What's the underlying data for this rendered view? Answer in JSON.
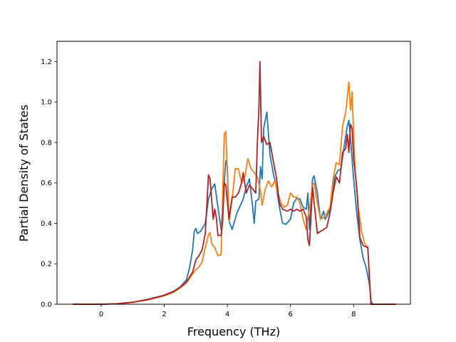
{
  "chart_data": {
    "type": "line",
    "title": "",
    "xlabel": "Frequency (THz)",
    "ylabel": "Partial Density of States",
    "xlim": [
      -1.4,
      9.8
    ],
    "ylim": [
      0.0,
      1.3
    ],
    "xticks": [
      0,
      2,
      4,
      6,
      8
    ],
    "yticks": [
      0.0,
      0.2,
      0.4,
      0.6,
      0.8,
      1.0,
      1.2
    ],
    "xtick_labels": [
      "0",
      "2",
      "4",
      "6",
      "8"
    ],
    "ytick_labels": [
      "0.0",
      "0.2",
      "0.4",
      "0.6",
      "0.8",
      "1.0",
      "1.2"
    ],
    "grid": false,
    "legend": "none",
    "series": [
      {
        "color": "#1f77b4",
        "points": [
          [
            -0.9,
            0.0
          ],
          [
            0.0,
            0.0
          ],
          [
            0.5,
            0.002
          ],
          [
            1.0,
            0.01
          ],
          [
            1.5,
            0.025
          ],
          [
            2.0,
            0.045
          ],
          [
            2.3,
            0.065
          ],
          [
            2.5,
            0.085
          ],
          [
            2.7,
            0.12
          ],
          [
            2.8,
            0.18
          ],
          [
            2.9,
            0.27
          ],
          [
            2.95,
            0.36
          ],
          [
            3.0,
            0.375
          ],
          [
            3.05,
            0.35
          ],
          [
            3.15,
            0.36
          ],
          [
            3.3,
            0.4
          ],
          [
            3.4,
            0.52
          ],
          [
            3.5,
            0.57
          ],
          [
            3.6,
            0.595
          ],
          [
            3.7,
            0.48
          ],
          [
            3.8,
            0.37
          ],
          [
            3.9,
            0.6
          ],
          [
            3.95,
            0.71
          ],
          [
            4.0,
            0.68
          ],
          [
            4.05,
            0.41
          ],
          [
            4.15,
            0.37
          ],
          [
            4.3,
            0.45
          ],
          [
            4.5,
            0.52
          ],
          [
            4.6,
            0.58
          ],
          [
            4.7,
            0.62
          ],
          [
            4.8,
            0.48
          ],
          [
            4.85,
            0.4
          ],
          [
            4.9,
            0.51
          ],
          [
            5.0,
            0.52
          ],
          [
            5.05,
            0.68
          ],
          [
            5.1,
            0.62
          ],
          [
            5.15,
            0.87
          ],
          [
            5.25,
            0.95
          ],
          [
            5.35,
            0.74
          ],
          [
            5.45,
            0.65
          ],
          [
            5.55,
            0.58
          ],
          [
            5.65,
            0.48
          ],
          [
            5.75,
            0.4
          ],
          [
            5.85,
            0.395
          ],
          [
            6.0,
            0.42
          ],
          [
            6.1,
            0.5
          ],
          [
            6.2,
            0.525
          ],
          [
            6.3,
            0.52
          ],
          [
            6.4,
            0.48
          ],
          [
            6.5,
            0.47
          ],
          [
            6.55,
            0.55
          ],
          [
            6.6,
            0.37
          ],
          [
            6.7,
            0.62
          ],
          [
            6.75,
            0.635
          ],
          [
            6.85,
            0.55
          ],
          [
            6.95,
            0.42
          ],
          [
            7.05,
            0.46
          ],
          [
            7.1,
            0.42
          ],
          [
            7.2,
            0.45
          ],
          [
            7.3,
            0.5
          ],
          [
            7.4,
            0.63
          ],
          [
            7.5,
            0.66
          ],
          [
            7.6,
            0.67
          ],
          [
            7.7,
            0.78
          ],
          [
            7.8,
            0.88
          ],
          [
            7.85,
            0.91
          ],
          [
            7.9,
            0.82
          ],
          [
            8.0,
            0.62
          ],
          [
            8.1,
            0.45
          ],
          [
            8.2,
            0.32
          ],
          [
            8.3,
            0.23
          ],
          [
            8.4,
            0.18
          ],
          [
            8.5,
            0.1
          ],
          [
            8.55,
            0.02
          ],
          [
            8.6,
            0.0
          ],
          [
            9.35,
            0.0
          ]
        ]
      },
      {
        "color": "#ff7f0e",
        "points": [
          [
            -0.9,
            0.0
          ],
          [
            0.0,
            0.0
          ],
          [
            0.5,
            0.002
          ],
          [
            1.0,
            0.009
          ],
          [
            1.5,
            0.022
          ],
          [
            2.0,
            0.042
          ],
          [
            2.3,
            0.06
          ],
          [
            2.5,
            0.08
          ],
          [
            2.7,
            0.105
          ],
          [
            2.9,
            0.15
          ],
          [
            3.0,
            0.17
          ],
          [
            3.1,
            0.185
          ],
          [
            3.2,
            0.21
          ],
          [
            3.3,
            0.28
          ],
          [
            3.4,
            0.345
          ],
          [
            3.45,
            0.355
          ],
          [
            3.5,
            0.3
          ],
          [
            3.6,
            0.28
          ],
          [
            3.7,
            0.24
          ],
          [
            3.8,
            0.245
          ],
          [
            3.85,
            0.55
          ],
          [
            3.9,
            0.84
          ],
          [
            3.95,
            0.855
          ],
          [
            4.05,
            0.41
          ],
          [
            4.15,
            0.52
          ],
          [
            4.25,
            0.67
          ],
          [
            4.35,
            0.67
          ],
          [
            4.45,
            0.6
          ],
          [
            4.55,
            0.63
          ],
          [
            4.65,
            0.72
          ],
          [
            4.75,
            0.67
          ],
          [
            4.85,
            0.65
          ],
          [
            4.95,
            0.63
          ],
          [
            5.05,
            0.56
          ],
          [
            5.1,
            0.49
          ],
          [
            5.2,
            0.57
          ],
          [
            5.3,
            0.61
          ],
          [
            5.4,
            0.58
          ],
          [
            5.5,
            0.61
          ],
          [
            5.6,
            0.55
          ],
          [
            5.7,
            0.5
          ],
          [
            5.8,
            0.48
          ],
          [
            5.9,
            0.49
          ],
          [
            6.0,
            0.55
          ],
          [
            6.1,
            0.53
          ],
          [
            6.2,
            0.53
          ],
          [
            6.3,
            0.5
          ],
          [
            6.4,
            0.42
          ],
          [
            6.5,
            0.37
          ],
          [
            6.55,
            0.43
          ],
          [
            6.6,
            0.47
          ],
          [
            6.7,
            0.59
          ],
          [
            6.75,
            0.6
          ],
          [
            6.85,
            0.5
          ],
          [
            6.95,
            0.42
          ],
          [
            7.05,
            0.43
          ],
          [
            7.15,
            0.45
          ],
          [
            7.25,
            0.48
          ],
          [
            7.35,
            0.62
          ],
          [
            7.45,
            0.7
          ],
          [
            7.55,
            0.69
          ],
          [
            7.65,
            0.88
          ],
          [
            7.75,
            0.95
          ],
          [
            7.85,
            1.1
          ],
          [
            7.9,
            0.96
          ],
          [
            7.95,
            1.05
          ],
          [
            8.05,
            0.65
          ],
          [
            8.15,
            0.48
          ],
          [
            8.25,
            0.36
          ],
          [
            8.35,
            0.3
          ],
          [
            8.45,
            0.28
          ],
          [
            8.55,
            0.0
          ],
          [
            9.35,
            0.0
          ]
        ]
      },
      {
        "color": "#b22222",
        "points": [
          [
            -0.9,
            0.0
          ],
          [
            0.0,
            0.0
          ],
          [
            0.5,
            0.002
          ],
          [
            1.0,
            0.01
          ],
          [
            1.5,
            0.024
          ],
          [
            2.0,
            0.044
          ],
          [
            2.3,
            0.063
          ],
          [
            2.5,
            0.083
          ],
          [
            2.7,
            0.11
          ],
          [
            2.9,
            0.16
          ],
          [
            3.0,
            0.22
          ],
          [
            3.1,
            0.24
          ],
          [
            3.2,
            0.27
          ],
          [
            3.3,
            0.35
          ],
          [
            3.4,
            0.64
          ],
          [
            3.45,
            0.62
          ],
          [
            3.5,
            0.52
          ],
          [
            3.55,
            0.42
          ],
          [
            3.6,
            0.47
          ],
          [
            3.65,
            0.43
          ],
          [
            3.7,
            0.34
          ],
          [
            3.8,
            0.34
          ],
          [
            3.85,
            0.41
          ],
          [
            3.9,
            0.6
          ],
          [
            3.95,
            0.59
          ],
          [
            4.05,
            0.42
          ],
          [
            4.15,
            0.53
          ],
          [
            4.25,
            0.53
          ],
          [
            4.35,
            0.55
          ],
          [
            4.45,
            0.6
          ],
          [
            4.5,
            0.65
          ],
          [
            4.6,
            0.55
          ],
          [
            4.7,
            0.59
          ],
          [
            4.8,
            0.57
          ],
          [
            4.9,
            0.55
          ],
          [
            4.95,
            0.8
          ],
          [
            5.0,
            0.97
          ],
          [
            5.03,
            1.2
          ],
          [
            5.08,
            0.8
          ],
          [
            5.15,
            0.83
          ],
          [
            5.25,
            0.79
          ],
          [
            5.35,
            0.8
          ],
          [
            5.45,
            0.71
          ],
          [
            5.55,
            0.63
          ],
          [
            5.65,
            0.5
          ],
          [
            5.75,
            0.47
          ],
          [
            5.9,
            0.46
          ],
          [
            6.0,
            0.47
          ],
          [
            6.1,
            0.46
          ],
          [
            6.2,
            0.47
          ],
          [
            6.3,
            0.46
          ],
          [
            6.4,
            0.47
          ],
          [
            6.5,
            0.43
          ],
          [
            6.55,
            0.32
          ],
          [
            6.6,
            0.29
          ],
          [
            6.7,
            0.58
          ],
          [
            6.75,
            0.5
          ],
          [
            6.85,
            0.35
          ],
          [
            6.95,
            0.36
          ],
          [
            7.05,
            0.37
          ],
          [
            7.15,
            0.38
          ],
          [
            7.25,
            0.45
          ],
          [
            7.35,
            0.55
          ],
          [
            7.45,
            0.63
          ],
          [
            7.55,
            0.6
          ],
          [
            7.65,
            0.75
          ],
          [
            7.75,
            0.77
          ],
          [
            7.8,
            0.84
          ],
          [
            7.85,
            0.75
          ],
          [
            7.9,
            0.89
          ],
          [
            7.95,
            0.87
          ],
          [
            8.0,
            0.72
          ],
          [
            8.1,
            0.58
          ],
          [
            8.2,
            0.33
          ],
          [
            8.3,
            0.29
          ],
          [
            8.45,
            0.28
          ],
          [
            8.55,
            0.0
          ],
          [
            9.35,
            0.0
          ]
        ]
      }
    ]
  }
}
